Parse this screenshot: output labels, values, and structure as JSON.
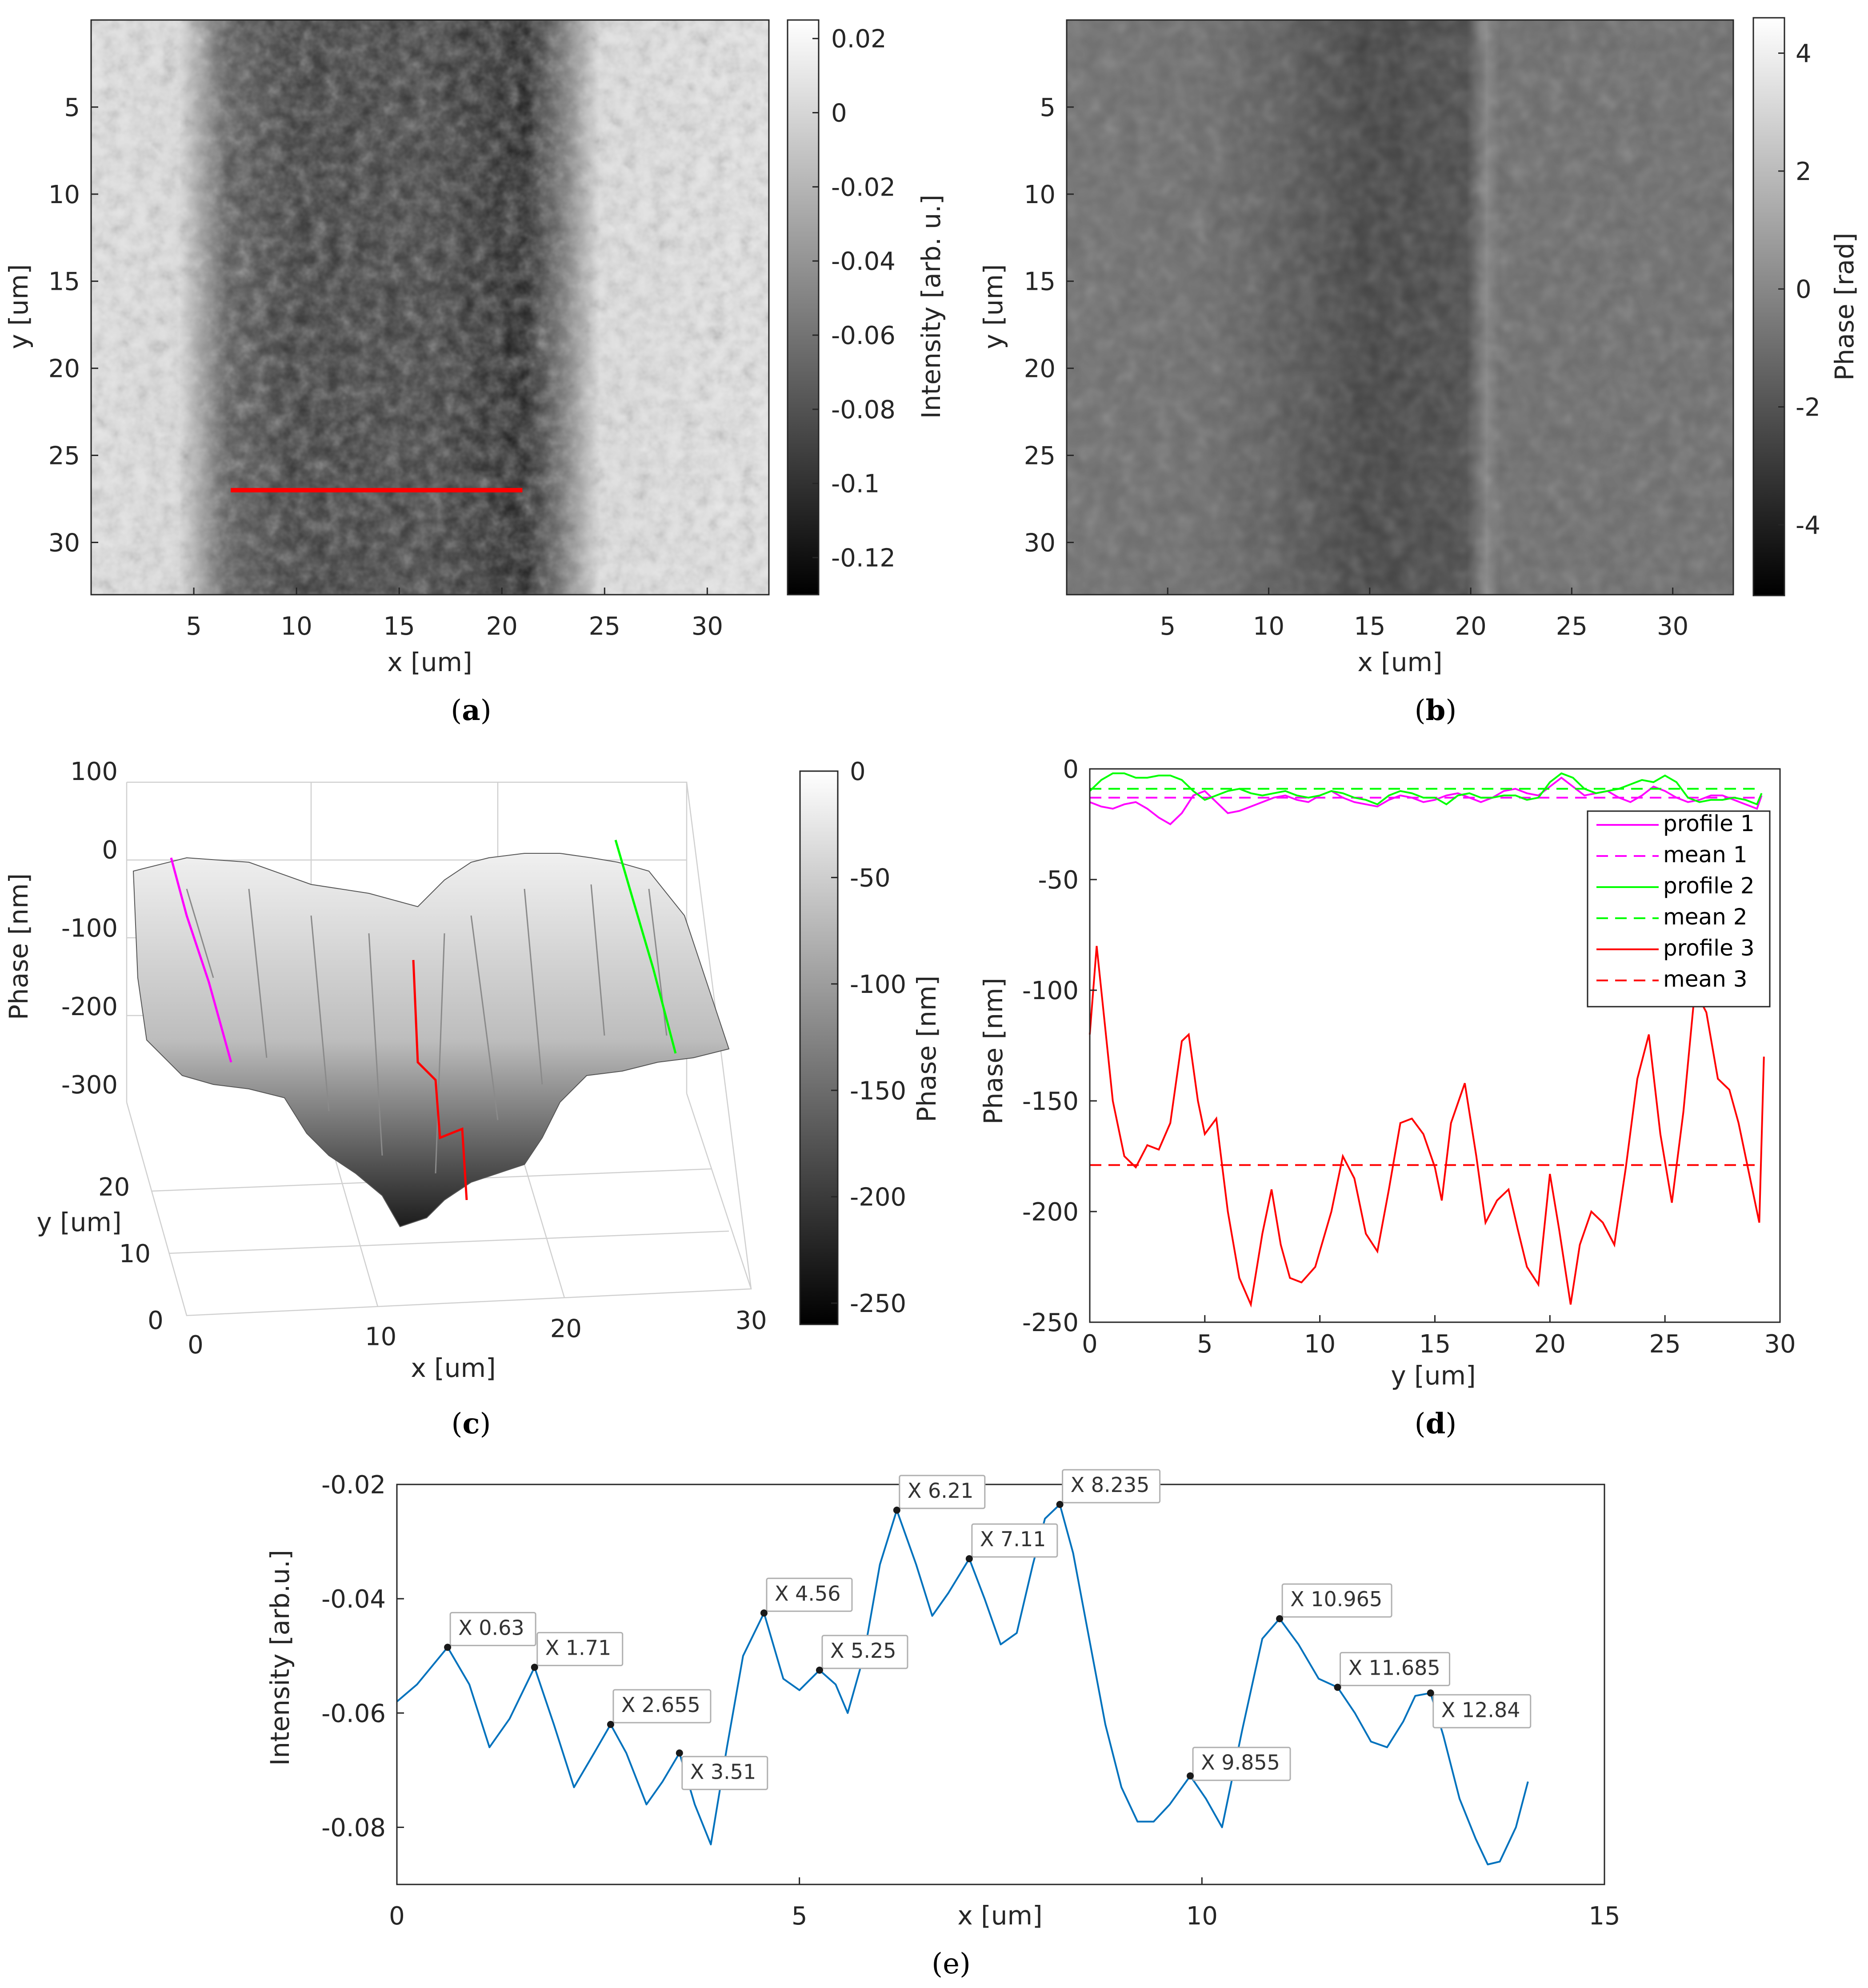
{
  "panels": {
    "a": {
      "caption": "a",
      "xlabel": "x [um]",
      "ylabel": "y [um]",
      "xticks": [
        "5",
        "10",
        "15",
        "20",
        "25",
        "30"
      ],
      "yticks": [
        "5",
        "10",
        "15",
        "20",
        "25",
        "30"
      ],
      "colorbar_label": "Intensity [arb. u.]",
      "colorbar_ticks": [
        "0.02",
        "0",
        "-0.02",
        "-0.04",
        "-0.06",
        "-0.08",
        "-0.1",
        "-0.12"
      ],
      "colormap": "gray",
      "marker_color": "#ff0000"
    },
    "b": {
      "caption": "b",
      "xlabel": "x [um]",
      "ylabel": "y [um]",
      "xticks": [
        "5",
        "10",
        "15",
        "20",
        "25",
        "30"
      ],
      "yticks": [
        "5",
        "10",
        "15",
        "20",
        "25",
        "30"
      ],
      "colorbar_label": "Phase [rad]",
      "colorbar_ticks": [
        "4",
        "2",
        "0",
        "-2",
        "-4"
      ],
      "colormap": "gray"
    },
    "c": {
      "caption": "c",
      "xlabel": "x [um]",
      "ylabel": "y [um]",
      "zlabel": "Phase [nm]",
      "xticks": [
        "0",
        "10",
        "20",
        "30"
      ],
      "yticks": [
        "0",
        "10",
        "20"
      ],
      "zticks": [
        "100",
        "0",
        "-100",
        "-200",
        "-300"
      ],
      "colorbar_label": "Phase [nm]",
      "colorbar_ticks": [
        "0",
        "-50",
        "-100",
        "-150",
        "-200",
        "-250"
      ],
      "profile_colors": [
        "#ff00ff",
        "#00ff00",
        "#ff0000"
      ]
    },
    "d": {
      "caption": "d",
      "xlabel": "y [um]",
      "ylabel": "Phase [nm]",
      "xticks": [
        "0",
        "5",
        "10",
        "15",
        "20",
        "25",
        "30"
      ],
      "yticks": [
        "0",
        "-50",
        "-100",
        "-150",
        "-200",
        "-250"
      ],
      "legend": [
        "profile 1",
        "mean 1",
        "profile 2",
        "mean 2",
        "profile 3",
        "mean 3"
      ]
    },
    "e": {
      "caption": "(e)",
      "xlabel": "x [um]",
      "ylabel": "Intensity [arb.u.]",
      "xticks": [
        "0",
        "5",
        "10",
        "15"
      ],
      "yticks": [
        "-0.02",
        "-0.04",
        "-0.06",
        "-0.08"
      ],
      "datatips": [
        "X 0.63",
        "X 1.71",
        "X 2.655",
        "X 3.51",
        "X 4.56",
        "X 5.25",
        "X 6.21",
        "X 7.11",
        "X 8.235",
        "X 9.855",
        "X 10.965",
        "X 11.685",
        "X 12.84"
      ]
    }
  },
  "chart_data": [
    {
      "type": "heatmap",
      "panel": "a",
      "xlabel": "x [um]",
      "ylabel": "y [um]",
      "xlim": [
        0,
        33
      ],
      "ylim": [
        33,
        0
      ],
      "colorbar": {
        "label": "Intensity [arb. u.]",
        "range": [
          -0.13,
          0.025
        ]
      },
      "marker_line": {
        "x": [
          6.8,
          21
        ],
        "y": [
          27,
          27
        ],
        "color": "#ff0000"
      }
    },
    {
      "type": "heatmap",
      "panel": "b",
      "xlabel": "x [um]",
      "ylabel": "y [um]",
      "xlim": [
        0,
        33
      ],
      "ylim": [
        33,
        0
      ],
      "colorbar": {
        "label": "Phase [rad]",
        "range": [
          -5.2,
          4.6
        ]
      }
    },
    {
      "type": "area",
      "panel": "c",
      "xlabel": "x [um]",
      "ylabel": "y [um]",
      "zlabel": "Phase [nm]",
      "xlim": [
        0,
        30
      ],
      "ylim": [
        0,
        30
      ],
      "zlim": [
        -300,
        100
      ],
      "colorbar": {
        "label": "Phase [nm]",
        "range": [
          -260,
          0
        ]
      }
    },
    {
      "type": "line",
      "panel": "d",
      "xlabel": "y [um]",
      "ylabel": "Phase [nm]",
      "xlim": [
        0,
        30
      ],
      "ylim": [
        -250,
        0
      ],
      "legend_position": "top-right",
      "series": [
        {
          "name": "profile 1",
          "color": "#ff00ff",
          "style": "solid",
          "x": [
            0,
            0.5,
            1,
            1.5,
            2,
            2.5,
            3,
            3.5,
            4,
            4.5,
            5,
            5.5,
            6,
            6.5,
            7,
            7.5,
            8,
            8.5,
            9,
            9.5,
            10,
            10.5,
            11,
            11.5,
            12,
            12.5,
            13,
            13.5,
            14,
            14.5,
            15,
            15.5,
            16,
            16.5,
            17,
            17.5,
            18,
            18.5,
            19,
            19.5,
            20,
            20.5,
            21,
            21.5,
            22,
            22.5,
            23,
            23.5,
            24,
            24.5,
            25,
            25.5,
            26,
            26.5,
            27,
            27.5,
            28,
            28.5,
            29,
            29.2
          ],
          "y": [
            -15,
            -17,
            -18,
            -16,
            -15,
            -18,
            -22,
            -25,
            -20,
            -12,
            -10,
            -15,
            -20,
            -19,
            -17,
            -15,
            -13,
            -12,
            -14,
            -15,
            -12,
            -10,
            -13,
            -15,
            -16,
            -17,
            -14,
            -12,
            -13,
            -15,
            -14,
            -12,
            -11,
            -13,
            -15,
            -13,
            -10,
            -9,
            -11,
            -12,
            -8,
            -4,
            -8,
            -12,
            -11,
            -10,
            -13,
            -15,
            -12,
            -8,
            -10,
            -13,
            -15,
            -14,
            -12,
            -12,
            -14,
            -16,
            -18,
            -12
          ]
        },
        {
          "name": "mean 1",
          "color": "#ff00ff",
          "style": "dashed",
          "x": [
            0,
            29.2
          ],
          "y": [
            -13,
            -13
          ]
        },
        {
          "name": "profile 2",
          "color": "#00ff00",
          "style": "solid",
          "x": [
            0,
            0.5,
            1,
            1.5,
            2,
            2.5,
            3,
            3.5,
            4,
            4.5,
            5,
            5.5,
            6,
            6.5,
            7,
            7.5,
            8,
            8.5,
            9,
            9.5,
            10,
            10.5,
            11,
            11.5,
            12,
            12.5,
            13,
            13.5,
            14,
            14.5,
            15,
            15.5,
            16,
            16.5,
            17,
            17.5,
            18,
            18.5,
            19,
            19.5,
            20,
            20.5,
            21,
            21.5,
            22,
            22.5,
            23,
            23.5,
            24,
            24.5,
            25,
            25.5,
            26,
            26.5,
            27,
            27.5,
            28,
            28.5,
            29,
            29.2
          ],
          "y": [
            -10,
            -5,
            -2,
            -2,
            -4,
            -4,
            -3,
            -3,
            -5,
            -10,
            -14,
            -12,
            -10,
            -9,
            -11,
            -12,
            -11,
            -10,
            -12,
            -13,
            -12,
            -10,
            -11,
            -13,
            -14,
            -16,
            -12,
            -10,
            -11,
            -13,
            -13,
            -16,
            -12,
            -11,
            -13,
            -13,
            -12,
            -12,
            -14,
            -13,
            -6,
            -2,
            -4,
            -9,
            -11,
            -10,
            -9,
            -7,
            -5,
            -6,
            -3,
            -6,
            -13,
            -15,
            -14,
            -14,
            -13,
            -14,
            -16,
            -11
          ]
        },
        {
          "name": "mean 2",
          "color": "#00ff00",
          "style": "dashed",
          "x": [
            0,
            29.2
          ],
          "y": [
            -9,
            -9
          ]
        },
        {
          "name": "profile 3",
          "color": "#ff0000",
          "style": "solid",
          "x": [
            0,
            0.3,
            0.6,
            1,
            1.5,
            2,
            2.5,
            3,
            3.5,
            4,
            4.3,
            4.7,
            5,
            5.5,
            6,
            6.5,
            7,
            7.5,
            7.9,
            8.3,
            8.7,
            9.2,
            9.8,
            10.5,
            11,
            11.5,
            12,
            12.5,
            13,
            13.5,
            14,
            14.5,
            15,
            15.3,
            15.7,
            16.3,
            16.8,
            17.2,
            17.7,
            18.2,
            18.6,
            19,
            19.5,
            20,
            20.4,
            20.9,
            21.3,
            21.8,
            22.3,
            22.8,
            23.3,
            23.8,
            24.3,
            24.8,
            25.3,
            25.8,
            26.3,
            26.8,
            27.3,
            27.8,
            28.2,
            28.7,
            29.1,
            29.3
          ],
          "y": [
            -120,
            -80,
            -110,
            -150,
            -175,
            -180,
            -170,
            -172,
            -160,
            -123,
            -120,
            -150,
            -165,
            -158,
            -200,
            -230,
            -242,
            -210,
            -190,
            -215,
            -230,
            -232,
            -225,
            -200,
            -175,
            -185,
            -210,
            -218,
            -190,
            -160,
            -158,
            -165,
            -180,
            -195,
            -160,
            -142,
            -175,
            -205,
            -195,
            -190,
            -208,
            -225,
            -233,
            -183,
            -208,
            -242,
            -215,
            -200,
            -205,
            -215,
            -180,
            -140,
            -120,
            -165,
            -196,
            -155,
            -100,
            -110,
            -140,
            -145,
            -160,
            -185,
            -205,
            -130
          ]
        },
        {
          "name": "mean 3",
          "color": "#ff0000",
          "style": "dashed",
          "x": [
            0,
            29.2
          ],
          "y": [
            -179,
            -179
          ]
        }
      ]
    },
    {
      "type": "line",
      "panel": "e",
      "xlabel": "x [um]",
      "ylabel": "Intensity [arb.u.]",
      "xlim": [
        0,
        15
      ],
      "ylim": [
        -0.09,
        -0.02
      ],
      "series": [
        {
          "color": "#0072bd",
          "x": [
            0,
            0.25,
            0.63,
            0.9,
            1.15,
            1.4,
            1.71,
            1.95,
            2.2,
            2.45,
            2.655,
            2.85,
            3.1,
            3.3,
            3.51,
            3.7,
            3.9,
            4.1,
            4.3,
            4.56,
            4.8,
            5.0,
            5.25,
            5.45,
            5.6,
            5.8,
            6.0,
            6.21,
            6.45,
            6.65,
            6.85,
            7.11,
            7.3,
            7.5,
            7.7,
            7.9,
            8.05,
            8.235,
            8.4,
            8.6,
            8.8,
            9.0,
            9.2,
            9.4,
            9.6,
            9.855,
            10.05,
            10.25,
            10.5,
            10.75,
            10.965,
            11.2,
            11.45,
            11.685,
            11.9,
            12.1,
            12.3,
            12.5,
            12.65,
            12.84,
            13.0,
            13.2,
            13.4,
            13.55,
            13.7,
            13.9,
            14.05
          ],
          "y": [
            -0.058,
            -0.055,
            -0.0485,
            -0.055,
            -0.066,
            -0.061,
            -0.052,
            -0.062,
            -0.073,
            -0.067,
            -0.062,
            -0.067,
            -0.076,
            -0.072,
            -0.067,
            -0.076,
            -0.083,
            -0.066,
            -0.05,
            -0.0425,
            -0.054,
            -0.056,
            -0.0525,
            -0.055,
            -0.06,
            -0.05,
            -0.034,
            -0.0245,
            -0.034,
            -0.043,
            -0.039,
            -0.033,
            -0.04,
            -0.048,
            -0.046,
            -0.034,
            -0.026,
            -0.0235,
            -0.032,
            -0.047,
            -0.062,
            -0.073,
            -0.079,
            -0.079,
            -0.076,
            -0.071,
            -0.075,
            -0.08,
            -0.063,
            -0.047,
            -0.0435,
            -0.048,
            -0.054,
            -0.0555,
            -0.06,
            -0.065,
            -0.066,
            -0.0615,
            -0.057,
            -0.0565,
            -0.064,
            -0.075,
            -0.082,
            -0.0865,
            -0.086,
            -0.08,
            -0.072
          ]
        },
        {
          "name": "datatips",
          "color": "#000000",
          "x": [
            0.63,
            1.71,
            2.655,
            3.51,
            4.56,
            5.25,
            6.21,
            7.11,
            8.235,
            9.855,
            10.965,
            11.685,
            12.84
          ],
          "y": [
            -0.0485,
            -0.052,
            -0.062,
            -0.067,
            -0.0425,
            -0.0525,
            -0.0245,
            -0.033,
            -0.0235,
            -0.071,
            -0.0435,
            -0.0555,
            -0.0565
          ]
        }
      ]
    }
  ]
}
